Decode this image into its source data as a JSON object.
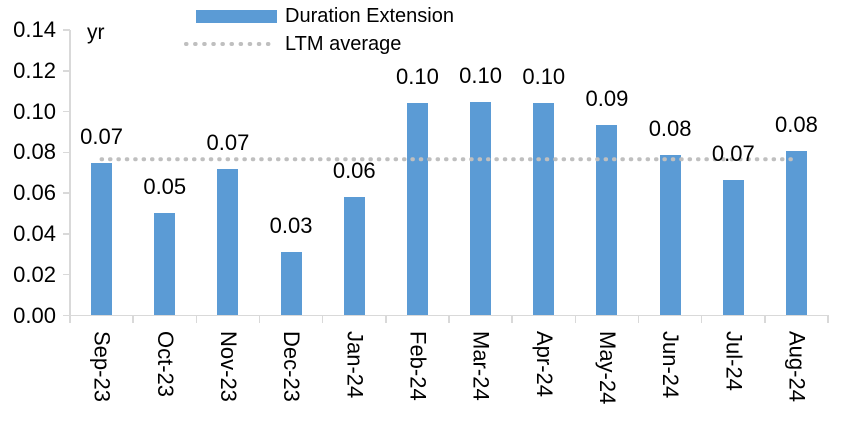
{
  "chart_data": {
    "type": "bar",
    "title": "",
    "unit_label": "yr",
    "categories": [
      "Sep-23",
      "Oct-23",
      "Nov-23",
      "Dec-23",
      "Jan-24",
      "Feb-24",
      "Mar-24",
      "Apr-24",
      "May-24",
      "Jun-24",
      "Jul-24",
      "Aug-24"
    ],
    "series": [
      {
        "name": "Duration Extension",
        "type": "bar",
        "values": [
          0.0748,
          0.0503,
          0.0718,
          0.0311,
          0.0581,
          0.1042,
          0.1049,
          0.1042,
          0.0934,
          0.0787,
          0.0664,
          0.0807
        ],
        "data_labels": [
          "0.07",
          "0.05",
          "0.07",
          "0.03",
          "0.06",
          "0.10",
          "0.10",
          "0.10",
          "0.09",
          "0.08",
          "0.07",
          "0.08"
        ]
      },
      {
        "name": "LTM average",
        "type": "line",
        "line_style": "dotted",
        "value": 0.0766
      }
    ],
    "ylim": [
      0,
      0.14
    ],
    "ytick_labels": [
      "0.00",
      "0.02",
      "0.04",
      "0.06",
      "0.08",
      "0.10",
      "0.12",
      "0.14"
    ],
    "grid": false,
    "legend_position": "top-center",
    "colors": {
      "bar": "#5B9BD5",
      "ltm_line": "#BFBFBF",
      "axis": "#D9D9D9",
      "text": "#000000"
    }
  }
}
